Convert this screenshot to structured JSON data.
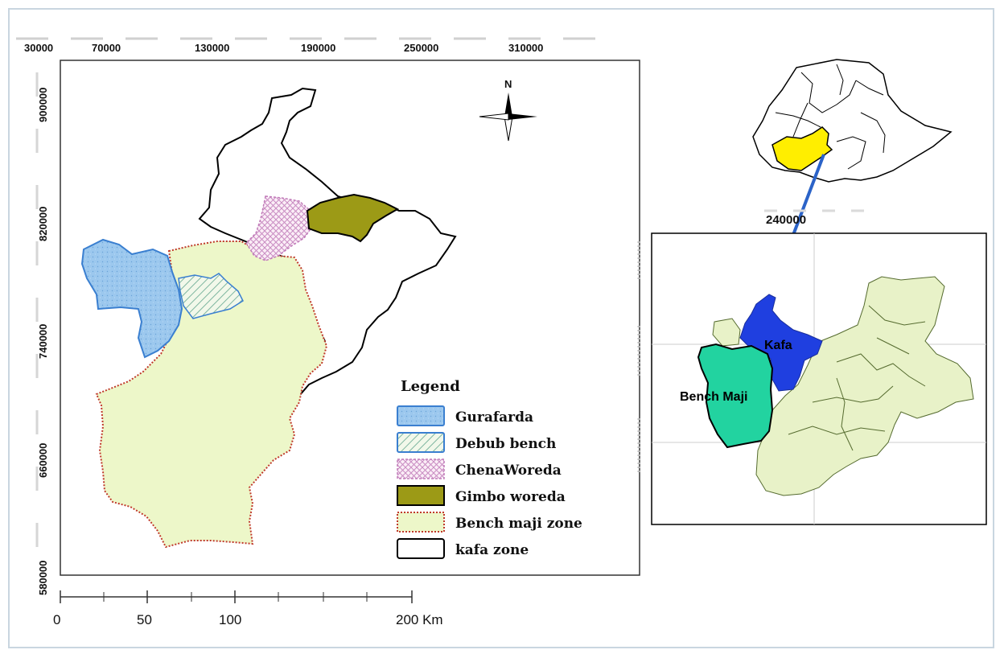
{
  "top_axis": {
    "ticks": [
      "30000",
      "70000",
      "130000",
      "190000",
      "250000",
      "310000"
    ]
  },
  "left_axis": {
    "ticks": [
      "900000",
      "820000",
      "740000",
      "660000",
      "580000"
    ]
  },
  "scale_bar": {
    "labels": [
      "0",
      "50",
      "100",
      "200 Km"
    ]
  },
  "north_arrow": {
    "label": "N"
  },
  "legend": {
    "title": "Legend",
    "items": [
      {
        "label": "Gurafarda",
        "pattern": "speckle",
        "fill": "#9cc8ee",
        "stroke": "#3a7fd0"
      },
      {
        "label": "Debub bench",
        "pattern": "hatch",
        "fill": "#eaf4e0",
        "stroke": "#3a7fd0"
      },
      {
        "label": "ChenaWoreda",
        "pattern": "cross",
        "fill": "#f7e4f2",
        "stroke": "#c07ab8"
      },
      {
        "label": "Gimbo woreda",
        "pattern": "solid",
        "fill": "#9c9a16",
        "stroke": "#000000"
      },
      {
        "label": "Bench maji zone",
        "pattern": "dotted-border",
        "fill": "#edf7c9",
        "stroke": "#c0392b"
      },
      {
        "label": "kafa zone",
        "pattern": "outline",
        "fill": "#ffffff",
        "stroke": "#000000"
      }
    ]
  },
  "inset": {
    "tick_label": "240000",
    "region_labels": {
      "kafa": "Kafa",
      "bench_maji": "Bench Maji"
    },
    "colors": {
      "kafa": "#1f3fe0",
      "bench_maji": "#22d3a0",
      "other_zones": "#e8f2c8",
      "ethiopia_highlight": "#ffee00",
      "connector": "#2b63c8"
    }
  }
}
